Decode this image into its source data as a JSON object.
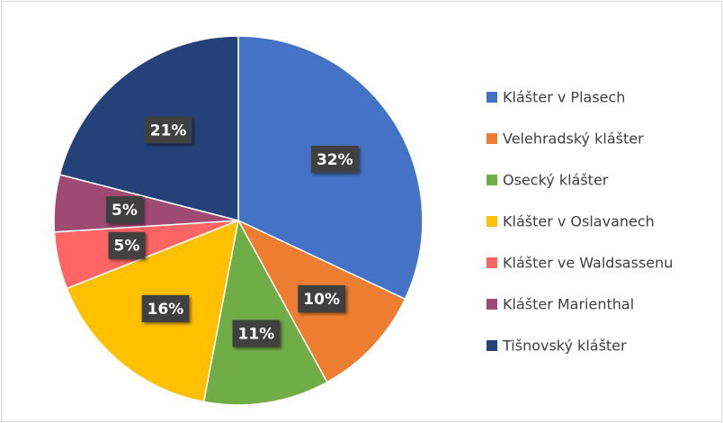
{
  "chart_data": {
    "type": "pie",
    "categories": [
      "Klášter v Plasech",
      "Velehradský klášter",
      "Osecký klášter",
      "Klášter v Oslavanech",
      "Klášter ve Waldsassenu",
      "Klášter Marienthal",
      "Tišnovský klášter"
    ],
    "values": [
      32,
      10,
      11,
      16,
      5,
      5,
      21
    ],
    "value_labels": [
      "32%",
      "10%",
      "11%",
      "16%",
      "5%",
      "5%",
      "21%"
    ],
    "colors": [
      "#4472c4",
      "#ed7d31",
      "#70ad47",
      "#ffc000",
      "#ff6565",
      "#9e4a73",
      "#254179"
    ],
    "legend": "right"
  }
}
